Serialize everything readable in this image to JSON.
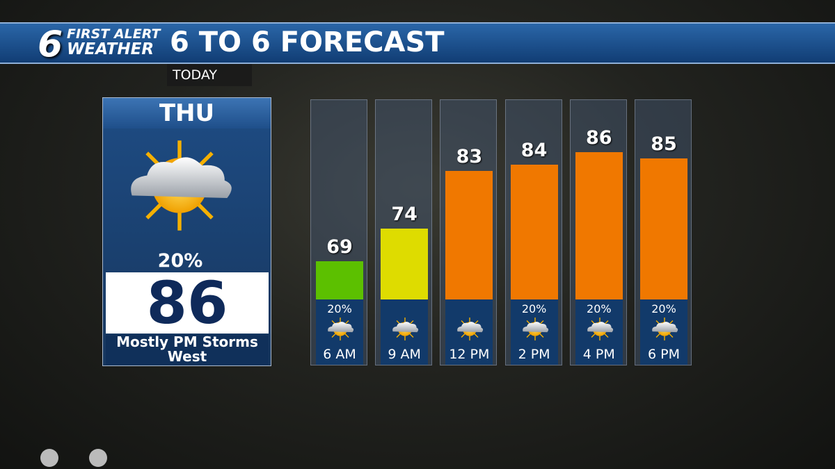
{
  "header": {
    "logo_number": "6",
    "logo_line1": "FIRST ALERT",
    "logo_line2": "WEATHER",
    "title": "6 TO 6 FORECAST",
    "subtitle": "TODAY"
  },
  "day_panel": {
    "day": "THU",
    "precip": "20%",
    "high": "86",
    "condition": "Mostly PM Storms West"
  },
  "chart_data": {
    "type": "bar",
    "categories": [
      "6 AM",
      "9 AM",
      "12 PM",
      "2 PM",
      "4 PM",
      "6 PM"
    ],
    "values": [
      69,
      74,
      83,
      84,
      86,
      85
    ],
    "colors": [
      "#5cc000",
      "#dedc00",
      "#f07800",
      "#f07800",
      "#f07800",
      "#f07800"
    ],
    "ylim": [
      63,
      93
    ],
    "precip": {
      "values": [
        20,
        null,
        null,
        20,
        20,
        20
      ],
      "value_labels": [
        "20%",
        null,
        null,
        "20%",
        "20%",
        "20%"
      ]
    }
  }
}
